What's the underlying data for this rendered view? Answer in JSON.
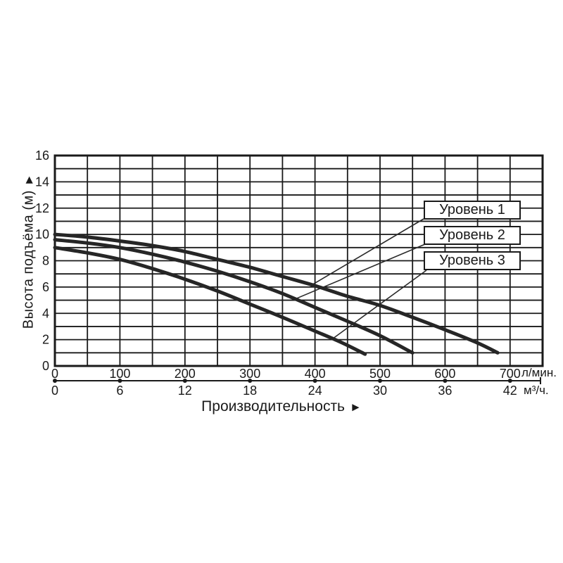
{
  "chart_data": {
    "type": "line",
    "title": "",
    "y_axis": {
      "label": "Высота подъёма (м)",
      "arrow": "►",
      "min": 0,
      "max": 16,
      "minor_step": 1,
      "tick_labels": [
        0,
        2,
        4,
        6,
        8,
        10,
        12,
        14,
        16
      ]
    },
    "x_axis": {
      "label": "Производительность",
      "arrow": "►",
      "min": 0,
      "max": 750,
      "minor_step": 50,
      "scales": [
        {
          "unit": "л/мин.",
          "ticks": [
            0,
            100,
            200,
            300,
            400,
            500,
            600,
            700
          ],
          "axis_max": 750
        },
        {
          "unit": "м³/ч.",
          "ticks": [
            0,
            6,
            12,
            18,
            24,
            30,
            36,
            42
          ],
          "axis_max": 45
        }
      ]
    },
    "grid": true,
    "legend": {
      "position": "inside-top-right",
      "items": [
        {
          "label": "Уровень 1",
          "attach_point": [
            393,
            6.1
          ]
        },
        {
          "label": "Уровень 2",
          "attach_point": [
            370,
            5.1
          ]
        },
        {
          "label": "Уровень 3",
          "attach_point": [
            428,
            2.1
          ]
        }
      ]
    },
    "series": [
      {
        "name": "Уровень 1",
        "points": [
          [
            0,
            10.0
          ],
          [
            50,
            9.8
          ],
          [
            100,
            9.5
          ],
          [
            150,
            9.15
          ],
          [
            200,
            8.7
          ],
          [
            250,
            8.1
          ],
          [
            300,
            7.5
          ],
          [
            350,
            6.8
          ],
          [
            400,
            6.1
          ],
          [
            450,
            5.3
          ],
          [
            500,
            4.6
          ],
          [
            550,
            3.7
          ],
          [
            600,
            2.75
          ],
          [
            650,
            1.75
          ],
          [
            681,
            1.0
          ]
        ]
      },
      {
        "name": "Уровень 2",
        "points": [
          [
            0,
            9.6
          ],
          [
            50,
            9.35
          ],
          [
            100,
            9.0
          ],
          [
            150,
            8.5
          ],
          [
            200,
            7.9
          ],
          [
            250,
            7.2
          ],
          [
            300,
            6.4
          ],
          [
            350,
            5.5
          ],
          [
            400,
            4.45
          ],
          [
            450,
            3.4
          ],
          [
            500,
            2.3
          ],
          [
            550,
            1.0
          ]
        ]
      },
      {
        "name": "Уровень 3",
        "points": [
          [
            0,
            9.0
          ],
          [
            50,
            8.6
          ],
          [
            100,
            8.1
          ],
          [
            150,
            7.4
          ],
          [
            200,
            6.6
          ],
          [
            250,
            5.7
          ],
          [
            300,
            4.7
          ],
          [
            350,
            3.7
          ],
          [
            400,
            2.65
          ],
          [
            440,
            1.8
          ],
          [
            477,
            0.9
          ]
        ]
      }
    ]
  },
  "colors": {
    "background": "#ffffff",
    "grid": "#1a1a1a",
    "curve": "#262626",
    "leader_line": "#2a2a2a",
    "text": "#1a1a1a",
    "legend_box_bg": "#ffffff",
    "legend_box_border": "#1a1a1a"
  }
}
